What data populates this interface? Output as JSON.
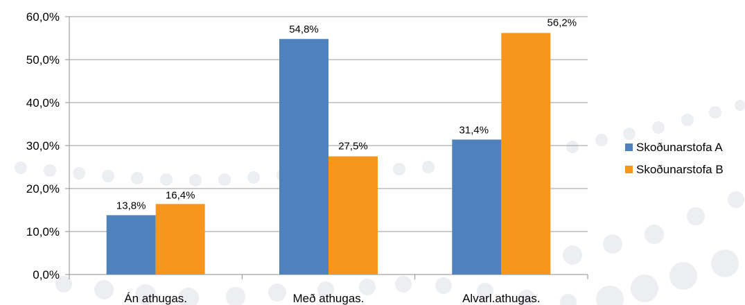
{
  "chart_data": {
    "type": "bar",
    "categories": [
      "Án athugas.",
      "Með athugas.",
      "Alvarl.athugas."
    ],
    "series": [
      {
        "name": "Skoðunarstofa A",
        "color": "#4f81bd",
        "values": [
          13.8,
          54.8,
          31.4
        ],
        "labels": [
          "13,8%",
          "54,8%",
          "31,4%"
        ]
      },
      {
        "name": "Skoðunarstofa B",
        "color": "#f7961d",
        "values": [
          16.4,
          27.5,
          56.2
        ],
        "labels": [
          "16,4%",
          "27,5%",
          "56,2%"
        ]
      }
    ],
    "ylim": [
      0,
      60
    ],
    "yticks": [
      "0,0%",
      "10,0%",
      "20,0%",
      "30,0%",
      "40,0%",
      "50,0%",
      "60,0%"
    ],
    "grid": true,
    "legend_position": "right",
    "xlabel": "",
    "ylabel": "",
    "title": ""
  }
}
